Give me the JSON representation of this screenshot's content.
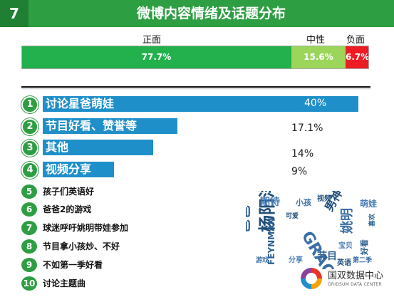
{
  "header": {
    "number": "7",
    "title": "微博内容情绪及话题分布"
  },
  "sentiment": {
    "positive": {
      "label": "正面",
      "value": "77.7%",
      "fraction": 0.777,
      "color": "#22b14c"
    },
    "neutral": {
      "label": "中性",
      "value": "15.6%",
      "fraction": 0.156,
      "color": "#9bd55a"
    },
    "negative": {
      "label": "负面",
      "value": "6.7%",
      "fraction": 0.067,
      "color": "#ee1c24"
    }
  },
  "top_topics": [
    {
      "num": "1",
      "label": "讨论星爸萌娃",
      "value": "40%",
      "percent": 40
    },
    {
      "num": "2",
      "label": "节目好看、赞誉等",
      "value": "17.1%",
      "percent": 17.1
    },
    {
      "num": "3",
      "label": "其他",
      "value": "14%",
      "percent": 14
    },
    {
      "num": "4",
      "label": "视频分享",
      "value": "9%",
      "percent": 9
    }
  ],
  "other_topics": [
    {
      "num": "5",
      "label": "孩子们英语好"
    },
    {
      "num": "6",
      "label": "爸爸2的游戏"
    },
    {
      "num": "7",
      "label": "球迷呼吁姚明带娃参加"
    },
    {
      "num": "8",
      "label": "节目拿小孩炒、不好"
    },
    {
      "num": "9",
      "label": "不如第一季好看"
    },
    {
      "num": "10",
      "label": "讨论主题曲"
    }
  ],
  "word_cloud": {
    "words": [
      "爸爸",
      "杨阳洋",
      "GRACE",
      "FEYNMAN",
      "男神",
      "姚明",
      "期待",
      "节目",
      "萌娃",
      "英语",
      "小孩",
      "好看",
      "分享",
      "视频",
      "游戏",
      "喜欢",
      "宝贝",
      "可爱",
      "第二季"
    ]
  },
  "logo": {
    "name": "国双数据中心",
    "subtitle": "GRIDSUM DATA CENTER"
  },
  "colors": {
    "accent": "#2e9e43",
    "bar": "#1f8fc9"
  }
}
